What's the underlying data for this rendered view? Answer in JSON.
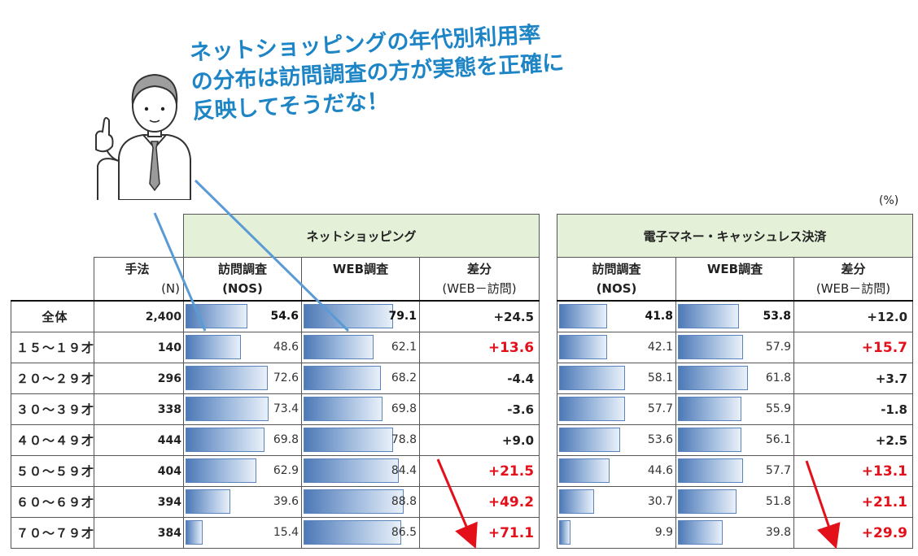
{
  "headline": [
    "ネットショッピングの年代別利用率",
    "の分布は訪問調査の方が実態を正確に",
    "反映してそうだな！"
  ],
  "unit": "(%)",
  "left_table": {
    "title": "ネットショッピング",
    "method_label": "手法",
    "n_label": "(N)",
    "col1": "訪問調査",
    "col1_sub": "(NOS)",
    "col2": "WEB調査",
    "col3": "差分",
    "col3_sub": "(WEB－訪問)"
  },
  "right_table": {
    "title": "電子マネー・キャッシュレス決済",
    "col1": "訪問調査",
    "col1_sub": "(NOS)",
    "col2": "WEB調査",
    "col3": "差分",
    "col3_sub": "(WEB－訪問)"
  },
  "rows": [
    {
      "label": "全体",
      "n": "2,400",
      "s_visit": 54.6,
      "s_visit_t": "54.6",
      "s_web": 79.1,
      "s_web_t": "79.1",
      "s_diff": "+24.5",
      "s_red": false,
      "e_visit": 41.8,
      "e_visit_t": "41.8",
      "e_web": 53.8,
      "e_web_t": "53.8",
      "e_diff": "+12.0",
      "e_red": false
    },
    {
      "label": "１５～１９才",
      "n": "140",
      "s_visit": 48.6,
      "s_visit_t": "48.6",
      "s_web": 62.1,
      "s_web_t": "62.1",
      "s_diff": "+13.6",
      "s_red": true,
      "e_visit": 42.1,
      "e_visit_t": "42.1",
      "e_web": 57.9,
      "e_web_t": "57.9",
      "e_diff": "+15.7",
      "e_red": true
    },
    {
      "label": "２０～２９才",
      "n": "296",
      "s_visit": 72.6,
      "s_visit_t": "72.6",
      "s_web": 68.2,
      "s_web_t": "68.2",
      "s_diff": "-4.4",
      "s_red": false,
      "e_visit": 58.1,
      "e_visit_t": "58.1",
      "e_web": 61.8,
      "e_web_t": "61.8",
      "e_diff": "+3.7",
      "e_red": false
    },
    {
      "label": "３０～３９才",
      "n": "338",
      "s_visit": 73.4,
      "s_visit_t": "73.4",
      "s_web": 69.8,
      "s_web_t": "69.8",
      "s_diff": "-3.6",
      "s_red": false,
      "e_visit": 57.7,
      "e_visit_t": "57.7",
      "e_web": 55.9,
      "e_web_t": "55.9",
      "e_diff": "-1.8",
      "e_red": false
    },
    {
      "label": "４０～４９才",
      "n": "444",
      "s_visit": 69.8,
      "s_visit_t": "69.8",
      "s_web": 78.8,
      "s_web_t": "78.8",
      "s_diff": "+9.0",
      "s_red": false,
      "e_visit": 53.6,
      "e_visit_t": "53.6",
      "e_web": 56.1,
      "e_web_t": "56.1",
      "e_diff": "+2.5",
      "e_red": false
    },
    {
      "label": "５０～５９才",
      "n": "404",
      "s_visit": 62.9,
      "s_visit_t": "62.9",
      "s_web": 84.4,
      "s_web_t": "84.4",
      "s_diff": "+21.5",
      "s_red": true,
      "e_visit": 44.6,
      "e_visit_t": "44.6",
      "e_web": 57.7,
      "e_web_t": "57.7",
      "e_diff": "+13.1",
      "e_red": true
    },
    {
      "label": "６０～６９才",
      "n": "394",
      "s_visit": 39.6,
      "s_visit_t": "39.6",
      "s_web": 88.8,
      "s_web_t": "88.8",
      "s_diff": "+49.2",
      "s_red": true,
      "e_visit": 30.7,
      "e_visit_t": "30.7",
      "e_web": 51.8,
      "e_web_t": "51.8",
      "e_diff": "+21.1",
      "e_red": true
    },
    {
      "label": "７０～７９才",
      "n": "384",
      "s_visit": 15.4,
      "s_visit_t": "15.4",
      "s_web": 86.5,
      "s_web_t": "86.5",
      "s_diff": "+71.1",
      "s_red": true,
      "e_visit": 9.9,
      "e_visit_t": "9.9",
      "e_web": 39.8,
      "e_web_t": "39.8",
      "e_diff": "+29.9",
      "e_red": true
    }
  ],
  "colors": {
    "header_bg": "#e4f0d7",
    "headline": "#1d84c6",
    "highlight": "#e3101a",
    "bar": "#4d79b7",
    "pointer_line": "#5b9bd5"
  }
}
